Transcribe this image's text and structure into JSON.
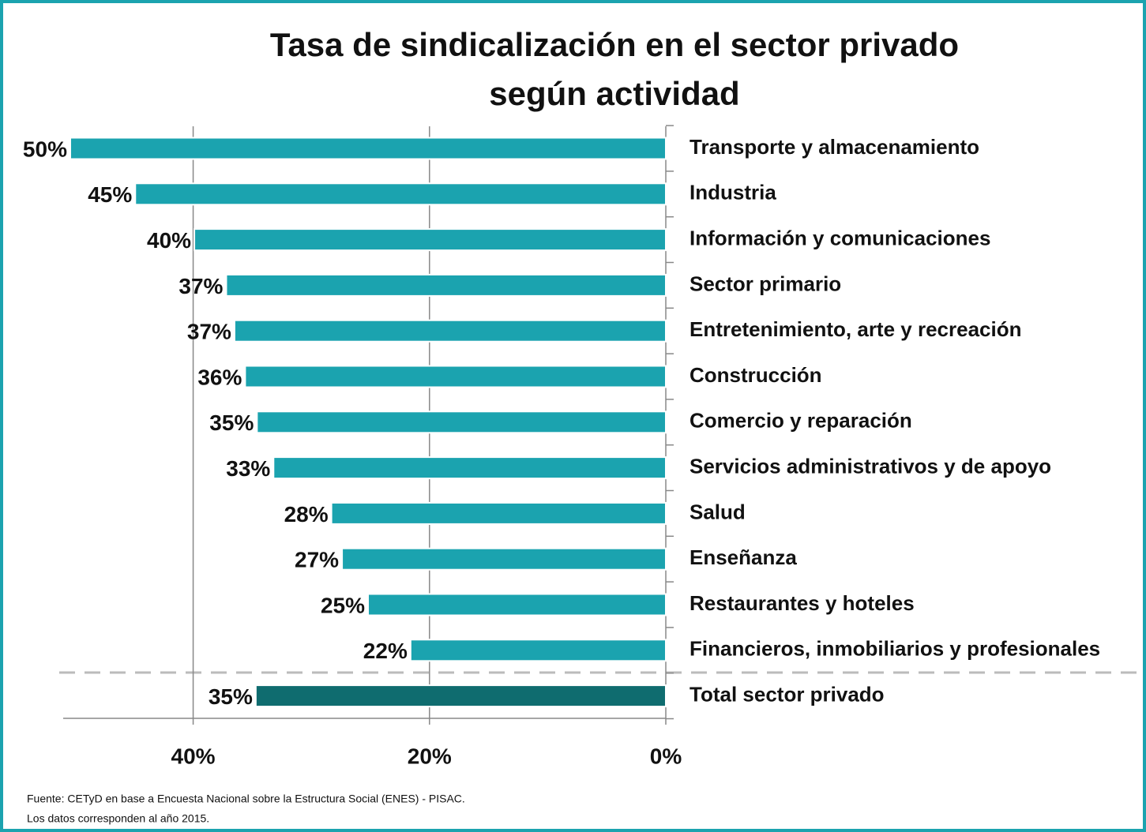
{
  "chart_data": {
    "type": "hbar",
    "title": [
      "Tasa de sindicalización en el sector privado",
      "según actividad"
    ],
    "categories": [
      "Transporte y almacenamiento",
      "Industria",
      "Información y comunicaciones",
      "Sector primario",
      "Entretenimiento, arte y recreación",
      "Construcción",
      "Comercio y reparación",
      "Servicios administrativos y de apoyo",
      "Salud",
      "Enseñanza",
      "Restaurantes y hoteles",
      "Financieros, inmobiliarios y profesionales",
      "Total sector privado"
    ],
    "values": [
      50.4,
      44.9,
      39.9,
      37.2,
      36.5,
      35.6,
      34.6,
      33.2,
      28.3,
      27.4,
      25.2,
      21.6,
      34.7
    ],
    "value_labels": [
      "50%",
      "45%",
      "40%",
      "37%",
      "37%",
      "36%",
      "35%",
      "33%",
      "28%",
      "27%",
      "25%",
      "22%",
      "35%"
    ],
    "colors": [
      "#1ba3af",
      "#1ba3af",
      "#1ba3af",
      "#1ba3af",
      "#1ba3af",
      "#1ba3af",
      "#1ba3af",
      "#1ba3af",
      "#1ba3af",
      "#1ba3af",
      "#1ba3af",
      "#1ba3af",
      "#0f6c6f"
    ],
    "xlim": [
      51,
      0
    ],
    "xticks": [
      {
        "value": 40,
        "label": "40%"
      },
      {
        "value": 20,
        "label": "20%"
      },
      {
        "value": 0,
        "label": "0%"
      }
    ],
    "grid": true,
    "notes": [
      "Fuente: CETyD en base a Encuesta Nacional sobre la Estructura Social (ENES) - PISAC.",
      "Los datos corresponden al año 2015."
    ]
  }
}
